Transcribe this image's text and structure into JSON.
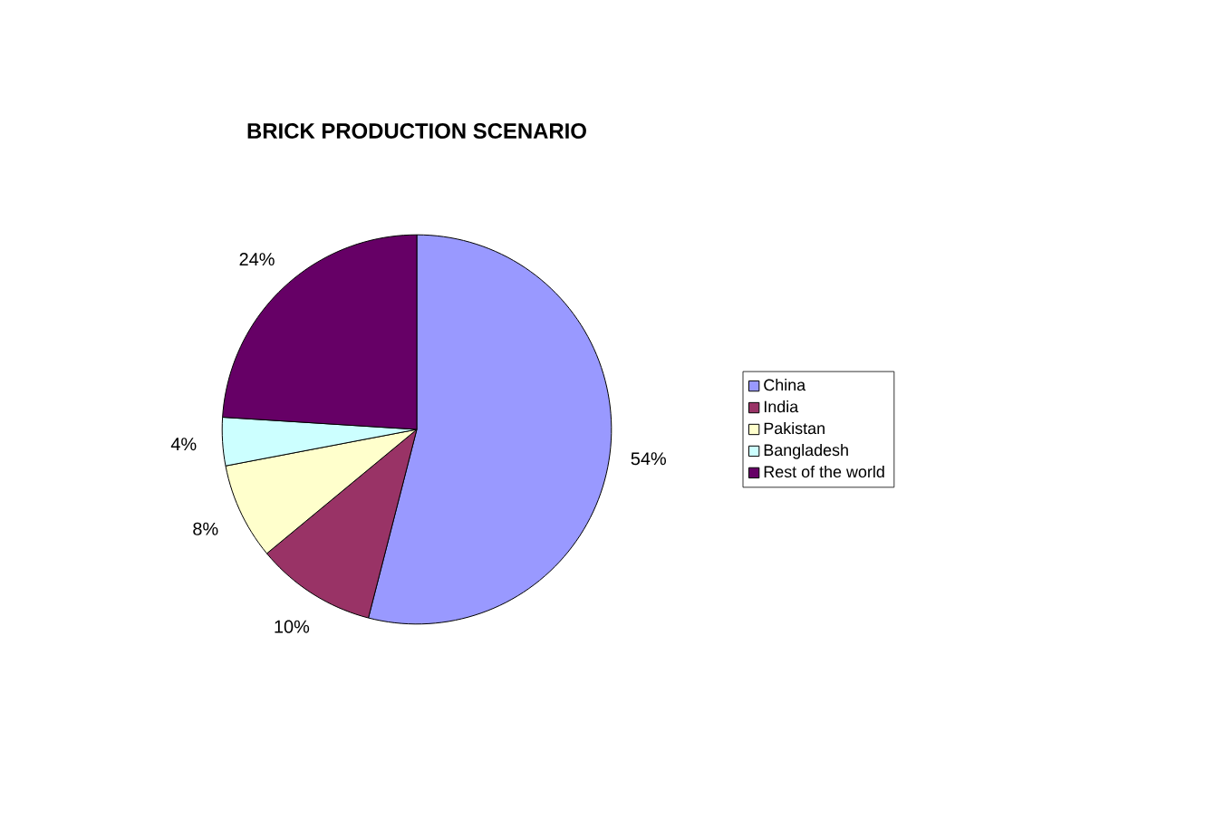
{
  "chart_data": {
    "type": "pie",
    "title": "BRICK PRODUCTION SCENARIO",
    "categories": [
      "China",
      "India",
      "Pakistan",
      "Bangladesh",
      "Rest of the world"
    ],
    "values": [
      54,
      10,
      8,
      4,
      24
    ],
    "value_labels": [
      "54%",
      "10%",
      "8%",
      "4%",
      "24%"
    ],
    "colors": [
      "#9999ff",
      "#993366",
      "#ffffcc",
      "#ccffff",
      "#660066"
    ],
    "legend": "right"
  }
}
